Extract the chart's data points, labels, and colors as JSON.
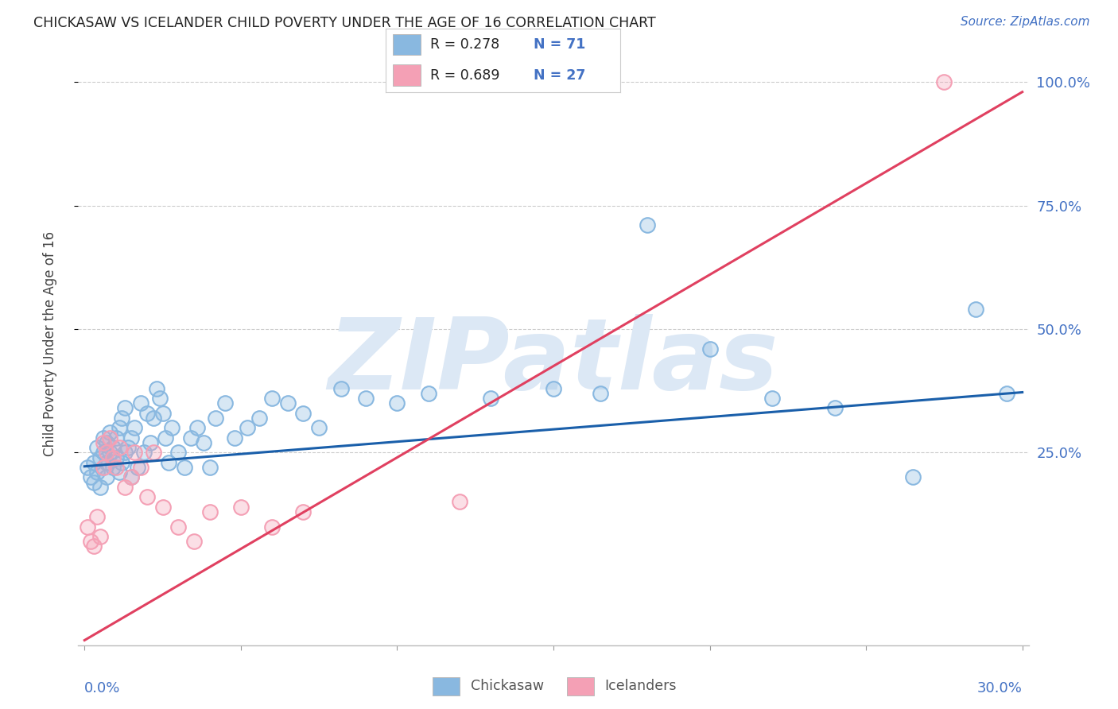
{
  "title": "CHICKASAW VS ICELANDER CHILD POVERTY UNDER THE AGE OF 16 CORRELATION CHART",
  "source": "Source: ZipAtlas.com",
  "ylabel": "Child Poverty Under the Age of 16",
  "chickasaw_R": 0.278,
  "chickasaw_N": 71,
  "icelander_R": 0.689,
  "icelander_N": 27,
  "chickasaw_color": "#89b8e0",
  "icelander_color": "#f4a0b5",
  "chickasaw_line_color": "#1a5faa",
  "icelander_line_color": "#e04060",
  "watermark_color": "#dce8f5",
  "background_color": "#ffffff",
  "xlim_min": -0.002,
  "xlim_max": 0.302,
  "ylim_min": -0.14,
  "ylim_max": 1.08,
  "ytick_positions": [
    0.25,
    0.5,
    0.75,
    1.0
  ],
  "ytick_labels": [
    "25.0%",
    "50.0%",
    "75.0%",
    "100.0%"
  ],
  "xtick_positions": [
    0.0,
    0.05,
    0.1,
    0.15,
    0.2,
    0.25,
    0.3
  ],
  "chick_intercept": 0.222,
  "chick_slope": 0.5,
  "icel_intercept": -0.13,
  "icel_slope": 3.7,
  "legend_R1": "R = 0.278",
  "legend_N1": "N = 71",
  "legend_R2": "R = 0.689",
  "legend_N2": "N = 27",
  "legend_label1": "Chickasaw",
  "legend_label2": "Icelanders",
  "chick_x": [
    0.001,
    0.002,
    0.003,
    0.003,
    0.004,
    0.004,
    0.005,
    0.005,
    0.006,
    0.006,
    0.006,
    0.007,
    0.007,
    0.007,
    0.008,
    0.008,
    0.009,
    0.009,
    0.01,
    0.01,
    0.011,
    0.011,
    0.012,
    0.012,
    0.013,
    0.013,
    0.014,
    0.015,
    0.015,
    0.016,
    0.017,
    0.018,
    0.019,
    0.02,
    0.021,
    0.022,
    0.023,
    0.024,
    0.025,
    0.026,
    0.027,
    0.028,
    0.03,
    0.032,
    0.034,
    0.036,
    0.038,
    0.04,
    0.042,
    0.045,
    0.048,
    0.052,
    0.056,
    0.06,
    0.065,
    0.07,
    0.075,
    0.082,
    0.09,
    0.1,
    0.11,
    0.13,
    0.15,
    0.165,
    0.18,
    0.2,
    0.22,
    0.24,
    0.265,
    0.285,
    0.295
  ],
  "chick_y": [
    0.22,
    0.2,
    0.19,
    0.23,
    0.21,
    0.26,
    0.18,
    0.24,
    0.22,
    0.25,
    0.28,
    0.2,
    0.23,
    0.27,
    0.25,
    0.29,
    0.22,
    0.26,
    0.24,
    0.28,
    0.21,
    0.3,
    0.23,
    0.32,
    0.25,
    0.34,
    0.26,
    0.28,
    0.2,
    0.3,
    0.22,
    0.35,
    0.25,
    0.33,
    0.27,
    0.32,
    0.38,
    0.36,
    0.33,
    0.28,
    0.23,
    0.3,
    0.25,
    0.22,
    0.28,
    0.3,
    0.27,
    0.22,
    0.32,
    0.35,
    0.28,
    0.3,
    0.32,
    0.36,
    0.35,
    0.33,
    0.3,
    0.38,
    0.36,
    0.35,
    0.37,
    0.36,
    0.38,
    0.37,
    0.71,
    0.46,
    0.36,
    0.34,
    0.2,
    0.54,
    0.37
  ],
  "icel_x": [
    0.001,
    0.002,
    0.003,
    0.004,
    0.005,
    0.006,
    0.006,
    0.007,
    0.008,
    0.009,
    0.01,
    0.011,
    0.013,
    0.015,
    0.016,
    0.018,
    0.02,
    0.022,
    0.025,
    0.03,
    0.035,
    0.04,
    0.05,
    0.06,
    0.07,
    0.12,
    0.275
  ],
  "icel_y": [
    0.1,
    0.07,
    0.06,
    0.12,
    0.08,
    0.22,
    0.27,
    0.25,
    0.28,
    0.24,
    0.22,
    0.26,
    0.18,
    0.2,
    0.25,
    0.22,
    0.16,
    0.25,
    0.14,
    0.1,
    0.07,
    0.13,
    0.14,
    0.1,
    0.13,
    0.15,
    1.0
  ]
}
